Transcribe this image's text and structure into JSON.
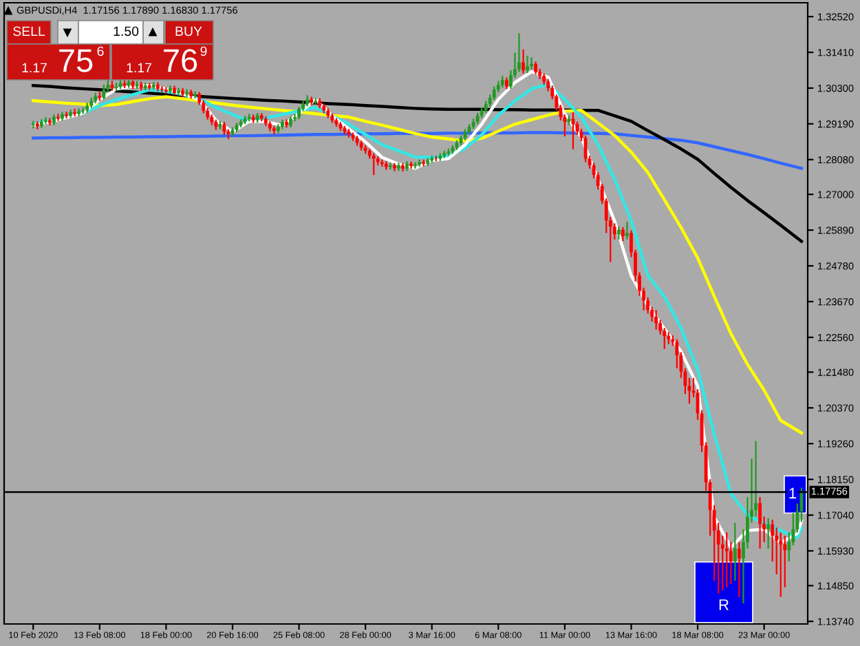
{
  "chart_data": {
    "type": "candlestick",
    "title": "GBPUSDi,H4  1.17156 1.17890 1.16830 1.17756",
    "categories": [
      "10 Feb 2020",
      null,
      null,
      null,
      null,
      null,
      null,
      null,
      null,
      null,
      null,
      null,
      null,
      null,
      null,
      null,
      "13 Feb 08:00",
      null,
      null,
      null,
      null,
      null,
      null,
      null,
      null,
      null,
      null,
      null,
      null,
      null,
      null,
      null,
      "18 Feb 00:00",
      null,
      null,
      null,
      null,
      null,
      null,
      null,
      null,
      null,
      null,
      null,
      null,
      null,
      null,
      null,
      "20 Feb 16:00",
      null,
      null,
      null,
      null,
      null,
      null,
      null,
      null,
      null,
      null,
      null,
      null,
      null,
      null,
      null,
      "25 Feb 08:00",
      null,
      null,
      null,
      null,
      null,
      null,
      null,
      null,
      null,
      null,
      null,
      null,
      null,
      null,
      null,
      "28 Feb 00:00",
      null,
      null,
      null,
      null,
      null,
      null,
      null,
      null,
      null,
      null,
      null,
      null,
      null,
      null,
      null,
      "3 Mar 16:00",
      null,
      null,
      null,
      null,
      null,
      null,
      null,
      null,
      null,
      null,
      null,
      null,
      null,
      null,
      null,
      "6 Mar 08:00",
      null,
      null,
      null,
      null,
      null,
      null,
      null,
      null,
      null,
      null,
      null,
      null,
      null,
      null,
      null,
      "11 Mar 00:00",
      null,
      null,
      null,
      null,
      null,
      null,
      null,
      null,
      null,
      null,
      null,
      null,
      null,
      null,
      null,
      "13 Mar 16:00",
      null,
      null,
      null,
      null,
      null,
      null,
      null,
      null,
      null,
      null,
      null,
      null,
      null,
      null,
      null,
      "18 Mar 08:00",
      null,
      null,
      null,
      null,
      null,
      null,
      null,
      null,
      null,
      null,
      null,
      null,
      null,
      null,
      null,
      "23 Mar 00:00",
      null,
      null,
      null,
      null,
      null,
      null,
      null,
      null,
      null
    ],
    "ohlc": [
      [
        1.2915,
        1.2928,
        1.2905,
        1.292
      ],
      [
        1.292,
        1.2927,
        1.2902,
        1.2912
      ],
      [
        1.2912,
        1.2933,
        1.2906,
        1.2925
      ],
      [
        1.2925,
        1.294,
        1.2918,
        1.293
      ],
      [
        1.293,
        1.2937,
        1.2914,
        1.2922
      ],
      [
        1.2922,
        1.2948,
        1.2915,
        1.294
      ],
      [
        1.294,
        1.295,
        1.2928,
        1.2935
      ],
      [
        1.2935,
        1.2956,
        1.2929,
        1.2948
      ],
      [
        1.2948,
        1.2957,
        1.2936,
        1.2944
      ],
      [
        1.2944,
        1.2963,
        1.2938,
        1.2955
      ],
      [
        1.2955,
        1.2966,
        1.2942,
        1.295
      ],
      [
        1.295,
        1.2967,
        1.2943,
        1.2958
      ],
      [
        1.2958,
        1.297,
        1.295,
        1.2961
      ],
      [
        1.2961,
        1.2984,
        1.2954,
        1.2975
      ],
      [
        1.2975,
        1.3,
        1.2968,
        1.299
      ],
      [
        1.299,
        1.3015,
        1.2983,
        1.3005
      ],
      [
        1.3005,
        1.3018,
        1.299,
        1.3
      ],
      [
        1.3,
        1.304,
        1.2995,
        1.3025
      ],
      [
        1.3025,
        1.306,
        1.3018,
        1.304
      ],
      [
        1.304,
        1.3052,
        1.3022,
        1.303
      ],
      [
        1.303,
        1.3046,
        1.3021,
        1.3034
      ],
      [
        1.3034,
        1.3056,
        1.3027,
        1.3045
      ],
      [
        1.3045,
        1.3055,
        1.303,
        1.3038
      ],
      [
        1.3038,
        1.3062,
        1.3031,
        1.305
      ],
      [
        1.305,
        1.3058,
        1.3027,
        1.3035
      ],
      [
        1.3035,
        1.3052,
        1.3028,
        1.3042
      ],
      [
        1.3042,
        1.305,
        1.3022,
        1.303
      ],
      [
        1.303,
        1.3047,
        1.3023,
        1.3038
      ],
      [
        1.3038,
        1.3046,
        1.3024,
        1.3032
      ],
      [
        1.3032,
        1.3049,
        1.3025,
        1.304
      ],
      [
        1.304,
        1.3048,
        1.302,
        1.3028
      ],
      [
        1.3028,
        1.3036,
        1.3016,
        1.3025
      ],
      [
        1.3025,
        1.3033,
        1.3012,
        1.302
      ],
      [
        1.302,
        1.3038,
        1.3013,
        1.303
      ],
      [
        1.303,
        1.3037,
        1.3008,
        1.3015
      ],
      [
        1.3015,
        1.3031,
        1.3008,
        1.3022
      ],
      [
        1.3022,
        1.303,
        1.3002,
        1.301
      ],
      [
        1.301,
        1.3027,
        1.3003,
        1.3018
      ],
      [
        1.3018,
        1.3025,
        1.2997,
        1.3005
      ],
      [
        1.3005,
        1.302,
        1.2998,
        1.3012
      ],
      [
        1.3012,
        1.3018,
        1.2978,
        1.2985
      ],
      [
        1.2985,
        1.2992,
        1.2952,
        1.296
      ],
      [
        1.296,
        1.2968,
        1.2932,
        1.294
      ],
      [
        1.294,
        1.2948,
        1.2915,
        1.2925
      ],
      [
        1.2925,
        1.2932,
        1.29,
        1.291
      ],
      [
        1.291,
        1.2928,
        1.2902,
        1.2918
      ],
      [
        1.2918,
        1.2925,
        1.2885,
        1.2895
      ],
      [
        1.2895,
        1.2902,
        1.2872,
        1.2888
      ],
      [
        1.2888,
        1.2908,
        1.288,
        1.29
      ],
      [
        1.29,
        1.2922,
        1.2893,
        1.2915
      ],
      [
        1.2915,
        1.2933,
        1.2908,
        1.2925
      ],
      [
        1.2925,
        1.2944,
        1.2918,
        1.2935
      ],
      [
        1.2935,
        1.295,
        1.2927,
        1.294
      ],
      [
        1.294,
        1.2948,
        1.2922,
        1.293
      ],
      [
        1.293,
        1.2953,
        1.2923,
        1.2945
      ],
      [
        1.2945,
        1.2952,
        1.2927,
        1.2935
      ],
      [
        1.2935,
        1.2942,
        1.2912,
        1.292
      ],
      [
        1.292,
        1.2927,
        1.2896,
        1.2905
      ],
      [
        1.2905,
        1.2912,
        1.2886,
        1.2897
      ],
      [
        1.2897,
        1.2918,
        1.289,
        1.291
      ],
      [
        1.291,
        1.2932,
        1.2903,
        1.2925
      ],
      [
        1.2925,
        1.2933,
        1.2907,
        1.2915
      ],
      [
        1.2915,
        1.2942,
        1.2908,
        1.2935
      ],
      [
        1.2935,
        1.295,
        1.2927,
        1.294
      ],
      [
        1.294,
        1.2972,
        1.2933,
        1.2965
      ],
      [
        1.2965,
        1.299,
        1.2958,
        1.298
      ],
      [
        1.298,
        1.3008,
        1.2973,
        1.2995
      ],
      [
        1.2995,
        1.3003,
        1.2977,
        1.2985
      ],
      [
        1.2985,
        1.3,
        1.2977,
        1.299
      ],
      [
        1.299,
        1.2998,
        1.2967,
        1.2975
      ],
      [
        1.2975,
        1.2982,
        1.2952,
        1.296
      ],
      [
        1.296,
        1.2967,
        1.2937,
        1.2945
      ],
      [
        1.2945,
        1.2952,
        1.2922,
        1.293
      ],
      [
        1.293,
        1.2937,
        1.291,
        1.2918
      ],
      [
        1.2918,
        1.2925,
        1.2897,
        1.2905
      ],
      [
        1.2905,
        1.2912,
        1.2886,
        1.2895
      ],
      [
        1.2895,
        1.2903,
        1.2876,
        1.2885
      ],
      [
        1.2885,
        1.2892,
        1.2866,
        1.2875
      ],
      [
        1.2875,
        1.2882,
        1.2851,
        1.286
      ],
      [
        1.286,
        1.2867,
        1.2836,
        1.2845
      ],
      [
        1.2845,
        1.2853,
        1.2826,
        1.2835
      ],
      [
        1.2835,
        1.2842,
        1.2811,
        1.282
      ],
      [
        1.282,
        1.2828,
        1.276,
        1.2811
      ],
      [
        1.2811,
        1.2818,
        1.279,
        1.28
      ],
      [
        1.28,
        1.2808,
        1.2786,
        1.2795
      ],
      [
        1.2795,
        1.2803,
        1.2776,
        1.2785
      ],
      [
        1.2785,
        1.2798,
        1.2777,
        1.279
      ],
      [
        1.279,
        1.2797,
        1.2772,
        1.2781
      ],
      [
        1.2781,
        1.2798,
        1.2773,
        1.279
      ],
      [
        1.279,
        1.2797,
        1.2771,
        1.278
      ],
      [
        1.278,
        1.2803,
        1.2773,
        1.2795
      ],
      [
        1.2795,
        1.2802,
        1.278,
        1.2788
      ],
      [
        1.2788,
        1.28,
        1.278,
        1.2792
      ],
      [
        1.2792,
        1.2808,
        1.2785,
        1.28
      ],
      [
        1.28,
        1.2808,
        1.2787,
        1.2795
      ],
      [
        1.2795,
        1.2813,
        1.2788,
        1.2805
      ],
      [
        1.2805,
        1.282,
        1.2798,
        1.2812
      ],
      [
        1.2812,
        1.282,
        1.2803,
        1.2811
      ],
      [
        1.2811,
        1.2828,
        1.2804,
        1.282
      ],
      [
        1.282,
        1.2836,
        1.2813,
        1.2828
      ],
      [
        1.2828,
        1.2842,
        1.282,
        1.2833
      ],
      [
        1.2833,
        1.2853,
        1.2826,
        1.2845
      ],
      [
        1.2845,
        1.2868,
        1.2838,
        1.286
      ],
      [
        1.286,
        1.2883,
        1.2853,
        1.2875
      ],
      [
        1.2875,
        1.2903,
        1.2868,
        1.2895
      ],
      [
        1.2895,
        1.2918,
        1.2888,
        1.291
      ],
      [
        1.291,
        1.2935,
        1.2903,
        1.2925
      ],
      [
        1.2925,
        1.2953,
        1.2918,
        1.2945
      ],
      [
        1.2945,
        1.297,
        1.2938,
        1.2961
      ],
      [
        1.2961,
        1.299,
        1.2953,
        1.298
      ],
      [
        1.298,
        1.301,
        1.2972,
        1.3
      ],
      [
        1.3,
        1.3035,
        1.2993,
        1.3025
      ],
      [
        1.3025,
        1.3052,
        1.3017,
        1.304
      ],
      [
        1.304,
        1.3068,
        1.3032,
        1.3055
      ],
      [
        1.3055,
        1.3063,
        1.3027,
        1.3035
      ],
      [
        1.3035,
        1.3085,
        1.3028,
        1.307
      ],
      [
        1.307,
        1.314,
        1.3062,
        1.3089
      ],
      [
        1.3089,
        1.32,
        1.308,
        1.311
      ],
      [
        1.311,
        1.315,
        1.3075,
        1.3085
      ],
      [
        1.3085,
        1.313,
        1.3077,
        1.3098
      ],
      [
        1.3098,
        1.3125,
        1.3088,
        1.3105
      ],
      [
        1.3105,
        1.3112,
        1.3072,
        1.308
      ],
      [
        1.308,
        1.309,
        1.3058,
        1.3068
      ],
      [
        1.3068,
        1.3075,
        1.304,
        1.305
      ],
      [
        1.305,
        1.3058,
        1.302,
        1.303
      ],
      [
        1.303,
        1.3038,
        1.2995,
        1.3004
      ],
      [
        1.3004,
        1.301,
        1.296,
        1.297
      ],
      [
        1.297,
        1.2978,
        1.293,
        1.294
      ],
      [
        1.294,
        1.2948,
        1.288,
        1.2925
      ],
      [
        1.2925,
        1.2945,
        1.2915,
        1.2935
      ],
      [
        1.2935,
        1.2955,
        1.284,
        1.2918
      ],
      [
        1.2918,
        1.2926,
        1.2885,
        1.2895
      ],
      [
        1.2895,
        1.2903,
        1.2865,
        1.2875
      ],
      [
        1.2875,
        1.2882,
        1.28,
        1.2811
      ],
      [
        1.2811,
        1.282,
        1.278,
        1.279
      ],
      [
        1.279,
        1.2798,
        1.275,
        1.276
      ],
      [
        1.276,
        1.2768,
        1.2715,
        1.2726
      ],
      [
        1.2726,
        1.2733,
        1.267,
        1.268
      ],
      [
        1.268,
        1.2688,
        1.258,
        1.2619
      ],
      [
        1.2619,
        1.263,
        1.249,
        1.26
      ],
      [
        1.26,
        1.261,
        1.256,
        1.2576
      ],
      [
        1.2576,
        1.26,
        1.256,
        1.259
      ],
      [
        1.259,
        1.2598,
        1.2555,
        1.257
      ],
      [
        1.257,
        1.2615,
        1.256,
        1.258
      ],
      [
        1.258,
        1.2588,
        1.2505,
        1.252
      ],
      [
        1.252,
        1.2528,
        1.243,
        1.2448
      ],
      [
        1.2448,
        1.2458,
        1.2385,
        1.24
      ],
      [
        1.24,
        1.241,
        1.234,
        1.237
      ],
      [
        1.237,
        1.238,
        1.233,
        1.2341
      ],
      [
        1.2341,
        1.235,
        1.2305,
        1.232
      ],
      [
        1.232,
        1.234,
        1.228,
        1.23
      ],
      [
        1.23,
        1.231,
        1.2265,
        1.2276
      ],
      [
        1.2276,
        1.2285,
        1.222,
        1.226
      ],
      [
        1.226,
        1.2272,
        1.2235,
        1.225
      ],
      [
        1.225,
        1.2262,
        1.223,
        1.2242
      ],
      [
        1.2242,
        1.225,
        1.216,
        1.22
      ],
      [
        1.22,
        1.221,
        1.213,
        1.215
      ],
      [
        1.215,
        1.216,
        1.208,
        1.2105
      ],
      [
        1.2105,
        1.213,
        1.205,
        1.209
      ],
      [
        1.209,
        1.213,
        1.207,
        1.2084
      ],
      [
        1.2084,
        1.2095,
        1.2,
        1.202
      ],
      [
        1.202,
        1.203,
        1.19,
        1.192
      ],
      [
        1.192,
        1.193,
        1.178,
        1.1806
      ],
      [
        1.1806,
        1.1815,
        1.164,
        1.172
      ],
      [
        1.172,
        1.1735,
        1.15,
        1.1656
      ],
      [
        1.1656,
        1.168,
        1.146,
        1.1613
      ],
      [
        1.1613,
        1.164,
        1.147,
        1.16
      ],
      [
        1.16,
        1.165,
        1.148,
        1.1592
      ],
      [
        1.1592,
        1.162,
        1.149,
        1.156
      ],
      [
        1.156,
        1.168,
        1.15,
        1.16
      ],
      [
        1.16,
        1.162,
        1.145,
        1.157
      ],
      [
        1.157,
        1.166,
        1.143,
        1.162
      ],
      [
        1.162,
        1.176,
        1.16,
        1.1699
      ],
      [
        1.1699,
        1.1879,
        1.168,
        1.172
      ],
      [
        1.172,
        1.1934,
        1.17,
        1.1741
      ],
      [
        1.1741,
        1.176,
        1.16,
        1.1677
      ],
      [
        1.1677,
        1.17,
        1.162,
        1.166
      ],
      [
        1.166,
        1.1695,
        1.16,
        1.1675
      ],
      [
        1.1675,
        1.169,
        1.156,
        1.164
      ],
      [
        1.164,
        1.1665,
        1.152,
        1.1625
      ],
      [
        1.1625,
        1.165,
        1.145,
        1.1613
      ],
      [
        1.1613,
        1.164,
        1.148,
        1.1595
      ],
      [
        1.1595,
        1.165,
        1.156,
        1.162
      ],
      [
        1.162,
        1.171,
        1.161,
        1.166
      ],
      [
        1.166,
        1.174,
        1.165,
        1.1716
      ],
      [
        1.17156,
        1.1789,
        1.1683,
        1.17756
      ]
    ],
    "colors": [
      "#229922",
      "#ff0000",
      "#229922",
      "#229922",
      "#ff0000",
      "#229922",
      "#ff0000",
      "#229922",
      "#ff0000",
      "#229922",
      "#ff0000",
      "#229922",
      "#229922",
      "#229922",
      "#229922",
      "#229922",
      "#ff0000",
      "#229922",
      "#229922",
      "#ff0000",
      "#229922",
      "#229922",
      "#ff0000",
      "#229922",
      "#ff0000",
      "#229922",
      "#ff0000",
      "#229922",
      "#ff0000",
      "#229922",
      "#ff0000",
      "#ff0000",
      "#ff0000",
      "#229922",
      "#ff0000",
      "#229922",
      "#ff0000",
      "#229922",
      "#ff0000",
      "#229922",
      "#ff0000",
      "#ff0000",
      "#ff0000",
      "#ff0000",
      "#ff0000",
      "#229922",
      "#ff0000",
      "#ff0000",
      "#229922",
      "#229922",
      "#229922",
      "#229922",
      "#229922",
      "#ff0000",
      "#229922",
      "#ff0000",
      "#ff0000",
      "#ff0000",
      "#ff0000",
      "#229922",
      "#229922",
      "#ff0000",
      "#229922",
      "#229922",
      "#229922",
      "#229922",
      "#229922",
      "#ff0000",
      "#229922",
      "#ff0000",
      "#ff0000",
      "#ff0000",
      "#ff0000",
      "#ff0000",
      "#ff0000",
      "#ff0000",
      "#ff0000",
      "#ff0000",
      "#ff0000",
      "#ff0000",
      "#ff0000",
      "#ff0000",
      "#ff0000",
      "#ff0000",
      "#ff0000",
      "#ff0000",
      "#229922",
      "#ff0000",
      "#229922",
      "#ff0000",
      "#229922",
      "#ff0000",
      "#229922",
      "#229922",
      "#ff0000",
      "#229922",
      "#229922",
      "#ff0000",
      "#229922",
      "#229922",
      "#229922",
      "#229922",
      "#229922",
      "#229922",
      "#229922",
      "#229922",
      "#229922",
      "#229922",
      "#229922",
      "#229922",
      "#229922",
      "#229922",
      "#229922",
      "#229922",
      "#ff0000",
      "#229922",
      "#229922",
      "#229922",
      "#ff0000",
      "#229922",
      "#229922",
      "#ff0000",
      "#ff0000",
      "#ff0000",
      "#ff0000",
      "#ff0000",
      "#ff0000",
      "#ff0000",
      "#ff0000",
      "#229922",
      "#ff0000",
      "#ff0000",
      "#ff0000",
      "#ff0000",
      "#ff0000",
      "#ff0000",
      "#ff0000",
      "#ff0000",
      "#ff0000",
      "#ff0000",
      "#ff0000",
      "#229922",
      "#ff0000",
      "#229922",
      "#ff0000",
      "#ff0000",
      "#ff0000",
      "#ff0000",
      "#ff0000",
      "#ff0000",
      "#ff0000",
      "#ff0000",
      "#ff0000",
      "#ff0000",
      "#ff0000",
      "#ff0000",
      "#ff0000",
      "#ff0000",
      "#ff0000",
      "#ff0000",
      "#ff0000",
      "#ff0000",
      "#ff0000",
      "#ff0000",
      "#ff0000",
      "#ff0000",
      "#ff0000",
      "#ff0000",
      "#ff0000",
      "#229922",
      "#ff0000",
      "#229922",
      "#229922",
      "#229922",
      "#229922",
      "#ff0000",
      "#ff0000",
      "#229922",
      "#ff0000",
      "#ff0000",
      "#ff0000",
      "#ff0000",
      "#229922",
      "#229922",
      "#229922",
      "#229922"
    ],
    "series": [
      {
        "type": "line",
        "color": "#3366ff",
        "values": [
          1.2875,
          null,
          null,
          null,
          1.2876,
          null,
          null,
          null,
          1.2876,
          null,
          null,
          null,
          1.2877,
          null,
          null,
          null,
          1.2877,
          null,
          null,
          null,
          1.2878,
          null,
          null,
          null,
          1.2878,
          null,
          null,
          null,
          1.2879,
          null,
          null,
          null,
          1.2879,
          null,
          null,
          null,
          1.288,
          null,
          null,
          null,
          1.288,
          null,
          null,
          null,
          1.2881,
          null,
          null,
          null,
          1.2882,
          null,
          null,
          null,
          1.2882,
          null,
          null,
          null,
          1.2883,
          null,
          null,
          null,
          1.2884,
          null,
          null,
          null,
          1.2885,
          null,
          null,
          null,
          1.2886,
          null,
          null,
          null,
          1.2886,
          null,
          null,
          null,
          1.2887,
          null,
          null,
          null,
          1.2888,
          null,
          null,
          null,
          1.2888,
          null,
          null,
          null,
          1.2889,
          null,
          null,
          null,
          1.2889,
          null,
          null,
          null,
          1.2889,
          null,
          null,
          null,
          1.289,
          null,
          null,
          null,
          1.289,
          null,
          null,
          null,
          1.2891,
          null,
          null,
          null,
          1.2891,
          null,
          null,
          null,
          1.2891,
          null,
          null,
          null,
          1.2892,
          null,
          null,
          null,
          1.2892,
          null,
          null,
          null,
          1.2891,
          null,
          null,
          null,
          1.289,
          null,
          null,
          null,
          1.2889,
          null,
          null,
          null,
          1.2888,
          null,
          null,
          null,
          1.2883,
          null,
          null,
          null,
          1.2878,
          null,
          null,
          null,
          1.2873,
          null,
          null,
          null,
          1.2868,
          null,
          null,
          null,
          1.286,
          null,
          null,
          null,
          1.2848,
          null,
          null,
          null,
          1.2836,
          null,
          null,
          null,
          1.2824,
          null,
          null,
          null,
          1.2811,
          null,
          null,
          null,
          1.2797,
          null,
          null,
          null,
          1.2784,
          1.2781
        ]
      },
      {
        "type": "line",
        "color": "#000000",
        "values": [
          1.3038,
          null,
          null,
          null,
          1.3035,
          null,
          null,
          null,
          1.3031,
          null,
          null,
          null,
          1.3028,
          null,
          null,
          null,
          1.3025,
          null,
          null,
          null,
          1.3021,
          null,
          null,
          null,
          1.3018,
          null,
          null,
          null,
          1.3014,
          null,
          null,
          null,
          1.3011,
          null,
          null,
          null,
          1.3007,
          null,
          null,
          null,
          1.3004,
          null,
          null,
          null,
          1.3001,
          null,
          null,
          null,
          1.2998,
          null,
          null,
          null,
          1.2995,
          null,
          null,
          null,
          1.2992,
          null,
          null,
          null,
          1.299,
          null,
          null,
          null,
          1.2987,
          null,
          null,
          null,
          1.2984,
          null,
          null,
          null,
          1.2981,
          null,
          null,
          null,
          1.2979,
          null,
          null,
          null,
          1.2976,
          null,
          null,
          null,
          1.2973,
          null,
          null,
          null,
          1.297,
          null,
          null,
          null,
          1.2967,
          null,
          null,
          null,
          1.2965,
          null,
          null,
          null,
          1.2964,
          null,
          null,
          null,
          1.2964,
          null,
          null,
          null,
          1.2964,
          null,
          null,
          null,
          1.2963,
          null,
          null,
          null,
          1.2963,
          null,
          null,
          null,
          1.2962,
          null,
          null,
          null,
          1.2962,
          null,
          null,
          null,
          1.2962,
          null,
          null,
          null,
          1.2961,
          null,
          null,
          null,
          1.2961,
          null,
          null,
          null,
          1.2944,
          null,
          null,
          null,
          1.2927,
          null,
          null,
          null,
          1.2898,
          null,
          null,
          null,
          1.287,
          null,
          null,
          null,
          1.2841,
          null,
          null,
          null,
          1.2809,
          null,
          null,
          null,
          1.2765,
          null,
          null,
          null,
          1.2722,
          null,
          null,
          null,
          1.2681,
          null,
          null,
          null,
          1.2643,
          null,
          null,
          null,
          1.2604,
          null,
          null,
          null,
          1.2564,
          1.2554
        ]
      },
      {
        "type": "line",
        "color": "#ffff00",
        "values": [
          1.2991,
          null,
          null,
          null,
          1.2987,
          null,
          null,
          null,
          1.2983,
          null,
          null,
          null,
          1.298,
          null,
          null,
          null,
          1.2976,
          null,
          null,
          null,
          1.2979,
          null,
          null,
          null,
          1.2988,
          null,
          null,
          null,
          1.2997,
          null,
          null,
          null,
          1.3003,
          null,
          null,
          null,
          1.2997,
          null,
          null,
          null,
          1.299,
          null,
          null,
          null,
          1.2984,
          null,
          null,
          null,
          1.2977,
          null,
          null,
          null,
          1.2971,
          null,
          null,
          null,
          1.2966,
          null,
          null,
          null,
          1.2961,
          null,
          null,
          null,
          1.2956,
          null,
          null,
          null,
          1.295,
          null,
          null,
          null,
          1.2945,
          null,
          null,
          null,
          1.294,
          null,
          null,
          null,
          1.2927,
          null,
          null,
          null,
          1.2915,
          null,
          null,
          null,
          1.2902,
          null,
          null,
          null,
          1.2889,
          null,
          null,
          null,
          1.2878,
          null,
          null,
          null,
          1.2872,
          null,
          null,
          null,
          1.2866,
          null,
          null,
          null,
          1.2874,
          null,
          null,
          null,
          1.2896,
          null,
          null,
          null,
          1.2918,
          null,
          null,
          null,
          1.2932,
          null,
          null,
          null,
          1.2946,
          null,
          null,
          null,
          1.2958,
          null,
          null,
          null,
          1.2961,
          null,
          null,
          null,
          1.2922,
          null,
          null,
          null,
          1.2883,
          null,
          null,
          null,
          1.2831,
          null,
          null,
          null,
          1.2768,
          null,
          null,
          null,
          1.2683,
          null,
          null,
          null,
          1.2597,
          null,
          null,
          null,
          1.2503,
          null,
          null,
          null,
          1.2383,
          null,
          null,
          null,
          1.2268,
          null,
          null,
          null,
          1.2172,
          null,
          null,
          null,
          1.2092,
          null,
          null,
          null,
          1.1998,
          null,
          null,
          null,
          1.1967,
          1.1959
        ]
      },
      {
        "type": "line",
        "color": "#33e6e6",
        "values": [
          1.2918,
          null,
          null,
          null,
          1.2929,
          null,
          null,
          null,
          1.2941,
          null,
          null,
          null,
          1.2952,
          null,
          null,
          null,
          1.2976,
          null,
          null,
          null,
          1.2994,
          null,
          null,
          null,
          1.301,
          null,
          null,
          null,
          1.3025,
          null,
          null,
          null,
          1.3019,
          null,
          null,
          null,
          1.301,
          null,
          null,
          null,
          1.2997,
          null,
          null,
          null,
          1.297,
          null,
          null,
          null,
          1.2948,
          null,
          null,
          null,
          1.2927,
          null,
          null,
          null,
          1.2937,
          null,
          null,
          null,
          1.2948,
          null,
          null,
          null,
          1.2959,
          null,
          null,
          null,
          1.297,
          null,
          null,
          null,
          1.2944,
          null,
          null,
          null,
          1.2918,
          null,
          null,
          null,
          1.2886,
          null,
          null,
          null,
          1.2854,
          null,
          null,
          null,
          1.2835,
          null,
          null,
          null,
          1.2816,
          null,
          null,
          null,
          1.2815,
          null,
          null,
          null,
          1.282,
          null,
          null,
          null,
          1.2843,
          null,
          null,
          null,
          1.2885,
          null,
          null,
          null,
          1.2946,
          null,
          null,
          null,
          1.299,
          null,
          null,
          null,
          1.3028,
          null,
          null,
          null,
          1.3042,
          null,
          null,
          null,
          1.2995,
          null,
          null,
          null,
          1.294,
          null,
          null,
          null,
          1.2854,
          null,
          null,
          null,
          1.2747,
          null,
          null,
          null,
          1.2619,
          null,
          null,
          null,
          1.2448,
          null,
          null,
          null,
          1.2382,
          null,
          null,
          null,
          1.2285,
          null,
          null,
          null,
          1.2156,
          null,
          null,
          null,
          1.1955,
          null,
          null,
          null,
          1.1771,
          null,
          null,
          null,
          1.1705,
          null,
          null,
          null,
          1.1677,
          null,
          null,
          null,
          1.1656,
          null,
          null,
          null,
          1.1634,
          1.1664
        ]
      },
      {
        "type": "line",
        "color": "#ffffff",
        "values": [
          1.2915,
          null,
          null,
          null,
          1.2925,
          null,
          null,
          null,
          1.2938,
          null,
          null,
          null,
          1.2952,
          null,
          null,
          null,
          1.2994,
          null,
          null,
          null,
          1.3027,
          null,
          null,
          null,
          1.3036,
          null,
          null,
          null,
          1.3038,
          null,
          null,
          null,
          1.3028,
          null,
          null,
          null,
          1.3013,
          null,
          null,
          null,
          1.2993,
          null,
          null,
          null,
          1.293,
          null,
          null,
          null,
          1.2894,
          null,
          null,
          null,
          1.2927,
          null,
          null,
          null,
          1.2926,
          null,
          null,
          null,
          1.2914,
          null,
          null,
          null,
          1.2951,
          null,
          null,
          null,
          1.2995,
          null,
          null,
          null,
          1.2944,
          null,
          null,
          null,
          1.2903,
          null,
          null,
          null,
          1.2863,
          null,
          null,
          null,
          1.2815,
          null,
          null,
          null,
          1.2794,
          null,
          null,
          null,
          1.2781,
          null,
          null,
          null,
          1.2805,
          null,
          null,
          null,
          1.2811,
          null,
          null,
          null,
          1.2854,
          null,
          null,
          null,
          1.2918,
          null,
          null,
          null,
          1.2995,
          null,
          null,
          null,
          1.3047,
          null,
          null,
          null,
          1.3081,
          null,
          null,
          null,
          1.3064,
          null,
          null,
          null,
          1.295,
          null,
          null,
          null,
          1.2876,
          null,
          null,
          null,
          1.2747,
          null,
          null,
          null,
          1.2617,
          null,
          null,
          null,
          1.2448,
          null,
          null,
          null,
          1.2355,
          null,
          null,
          null,
          1.2283,
          null,
          null,
          null,
          1.2212,
          null,
          null,
          null,
          1.2105,
          null,
          null,
          null,
          1.1698,
          null,
          null,
          null,
          1.1604,
          null,
          null,
          null,
          1.1656,
          null,
          null,
          null,
          1.166,
          null,
          null,
          null,
          1.1618,
          null,
          null,
          null,
          1.1647,
          1.1686
        ]
      }
    ],
    "ylim": [
      1.1366,
      1.3295
    ],
    "yticks": [
      {
        "value": 1.3252,
        "label": "1.32520"
      },
      {
        "value": 1.3141,
        "label": "1.31410"
      },
      {
        "value": 1.303,
        "label": "1.30300"
      },
      {
        "value": 1.2919,
        "label": "1.29190"
      },
      {
        "value": 1.2808,
        "label": "1.28080"
      },
      {
        "value": 1.27,
        "label": "1.27000"
      },
      {
        "value": 1.2589,
        "label": "1.25890"
      },
      {
        "value": 1.2478,
        "label": "1.24780"
      },
      {
        "value": 1.2367,
        "label": "1.23670"
      },
      {
        "value": 1.2256,
        "label": "1.22560"
      },
      {
        "value": 1.2148,
        "label": "1.21480"
      },
      {
        "value": 1.2037,
        "label": "1.20370"
      },
      {
        "value": 1.1926,
        "label": "1.19260"
      },
      {
        "value": 1.1815,
        "label": "1.18150"
      },
      {
        "value": 1.1704,
        "label": "1.17040"
      },
      {
        "value": 1.1593,
        "label": "1.15930"
      },
      {
        "value": 1.1485,
        "label": "1.14850"
      },
      {
        "value": 1.1374,
        "label": "1.13740"
      }
    ],
    "ref_lines": [
      {
        "axis": "y",
        "value": 1.17756,
        "label": "1.17756",
        "color": "#000000"
      }
    ],
    "annotations": [
      "SELL",
      "1.50",
      "BUY",
      "1.17",
      "75",
      "6",
      "1.17",
      "76",
      "9",
      "R",
      "1"
    ],
    "grid": false
  }
}
